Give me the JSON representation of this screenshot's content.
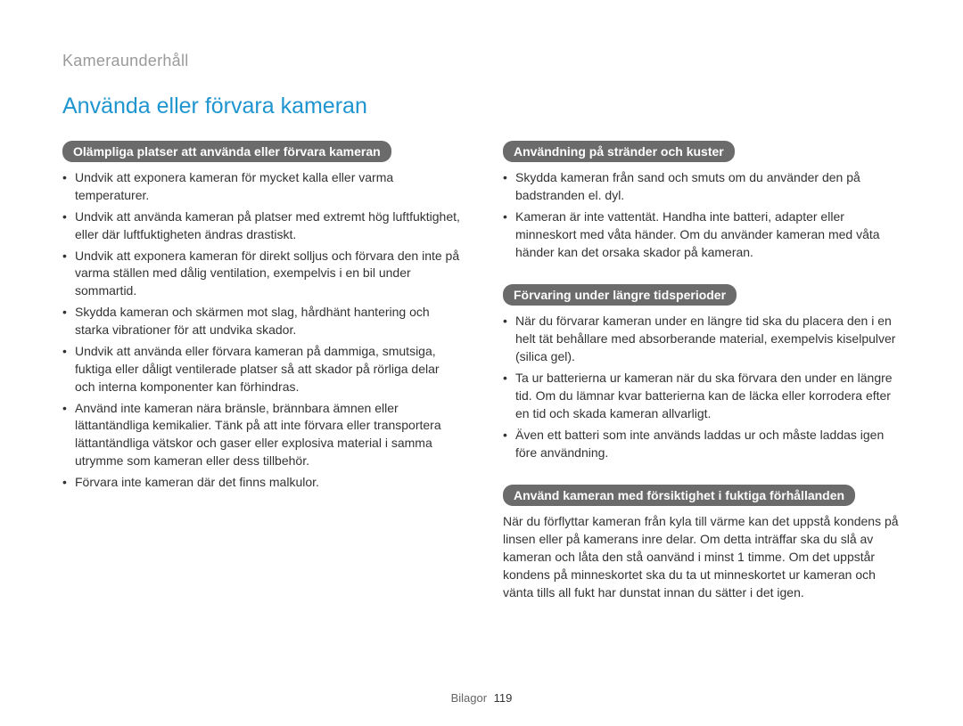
{
  "breadcrumb": "Kameraunderhåll",
  "title": "Använda eller förvara kameran",
  "left": {
    "section1": {
      "heading": "Olämpliga platser att använda eller förvara kameran",
      "items": [
        "Undvik att exponera kameran för mycket kalla eller varma temperaturer.",
        "Undvik att använda kameran på platser med extremt hög luftfuktighet, eller där luftfuktigheten ändras drastiskt.",
        "Undvik att exponera kameran för direkt solljus och förvara den inte på varma ställen med dålig ventilation, exempelvis i en bil under sommartid.",
        "Skydda kameran och skärmen mot slag, hårdhänt hantering och starka vibrationer för att undvika skador.",
        "Undvik att använda eller förvara kameran på dammiga, smutsiga, fuktiga eller dåligt ventilerade platser så att skador på rörliga delar och interna komponenter kan förhindras.",
        "Använd inte kameran nära bränsle, brännbara ämnen eller lättantändliga kemikalier. Tänk på att inte förvara eller transportera lättantändliga vätskor och gaser eller explosiva material i samma utrymme som kameran eller dess tillbehör.",
        "Förvara inte kameran där det finns malkulor."
      ]
    }
  },
  "right": {
    "section1": {
      "heading": "Användning på stränder och kuster",
      "items": [
        "Skydda kameran från sand och smuts om du använder den på badstranden el. dyl.",
        "Kameran är inte vattentät. Handha inte batteri, adapter eller minneskort med våta händer. Om du använder kameran med våta händer kan det orsaka skador på kameran."
      ]
    },
    "section2": {
      "heading": "Förvaring under längre tidsperioder",
      "items": [
        "När du förvarar kameran under en längre tid ska du placera den i en helt tät behållare med absorberande material, exempelvis kiselpulver (silica gel).",
        "Ta ur batterierna ur kameran när du ska förvara den under en längre tid. Om du lämnar kvar batterierna kan de läcka eller korrodera efter en tid och skada kameran allvarligt.",
        "Även ett batteri som inte används laddas ur och måste laddas igen före användning."
      ]
    },
    "section3": {
      "heading": "Använd kameran med försiktighet i fuktiga förhållanden",
      "paragraph": "När du förflyttar kameran från kyla till värme kan det uppstå kondens på linsen eller på kamerans inre delar. Om detta inträffar ska du slå av kameran och låta den stå oanvänd i minst 1 timme. Om det uppstår kondens på minneskortet ska du ta ut minneskortet ur kameran och vänta tills all fukt har dunstat innan du sätter i det igen."
    }
  },
  "footer": {
    "label": "Bilagor",
    "page": "119"
  },
  "colors": {
    "title": "#1f95d0",
    "breadcrumb": "#9a9a9a",
    "pill_bg": "#6b6b6b",
    "pill_text": "#ffffff",
    "body_text": "#333333",
    "background": "#ffffff"
  }
}
